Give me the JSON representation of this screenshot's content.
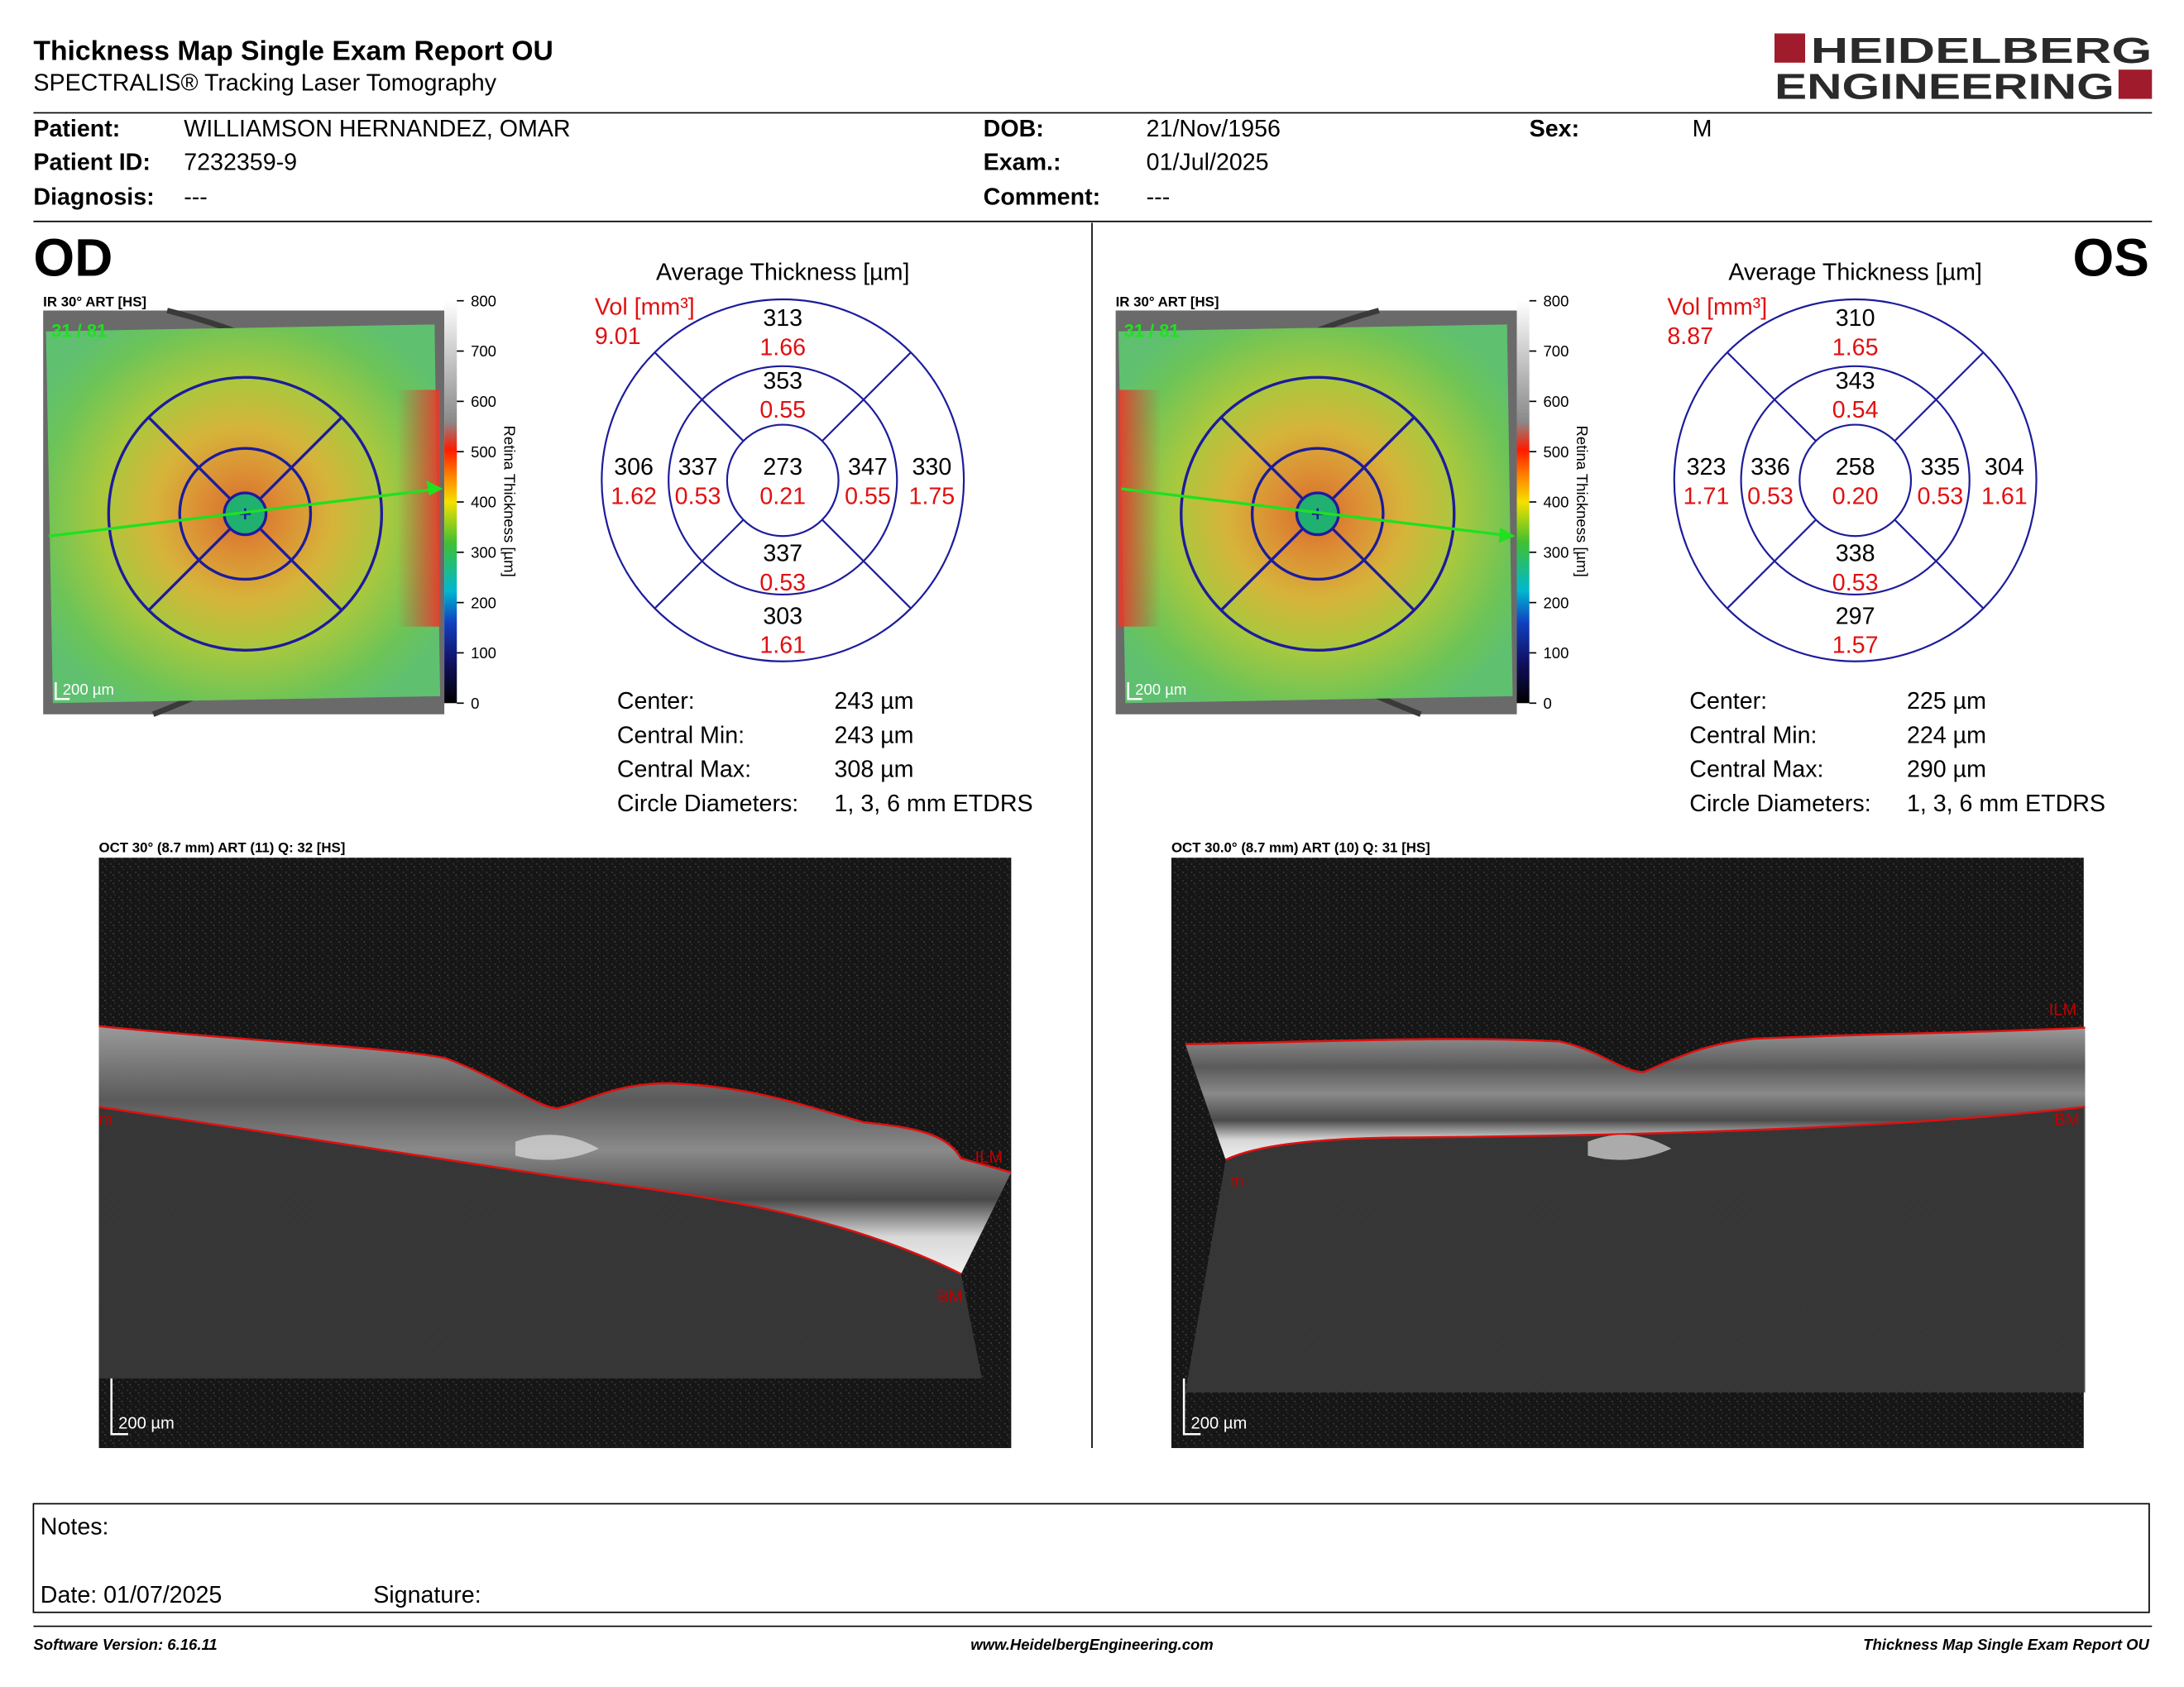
{
  "header": {
    "title": "Thickness Map Single Exam Report OU",
    "subtitle": "SPECTRALIS® Tracking Laser Tomography",
    "logo": [
      "HEIDELBERG",
      "ENGINEERING"
    ]
  },
  "patient": {
    "fields": [
      {
        "label": "Patient:",
        "value": "WILLIAMSON HERNANDEZ, OMAR"
      },
      {
        "label": "Patient ID:",
        "value": "7232359-9"
      },
      {
        "label": "Diagnosis:",
        "value": "---"
      },
      {
        "label": "DOB:",
        "value": "21/Nov/1956"
      },
      {
        "label": "Exam.:",
        "value": "01/Jul/2025"
      },
      {
        "label": "Comment:",
        "value": "---"
      },
      {
        "label": "Sex:",
        "value": "M"
      }
    ]
  },
  "eyes": [
    {
      "label": "OD",
      "fundus": {
        "label": "IR 30° ART [HS]",
        "frame": "31 / 81",
        "scale": "200 µm"
      },
      "colorbar": {
        "title": "Retina Thickness [µm]",
        "ticks": [
          "800",
          "700",
          "600",
          "500",
          "400",
          "300",
          "200",
          "100",
          "0"
        ]
      },
      "thickness": {
        "title": "Average Thickness [µm]",
        "vol_label": "Vol [mm³]",
        "total_vol": "9.01",
        "sectors": [
          {
            "thickness": "273",
            "volume": "0.21"
          },
          {
            "thickness": "353",
            "volume": "0.55"
          },
          {
            "thickness": "347",
            "volume": "0.55"
          },
          {
            "thickness": "337",
            "volume": "0.53"
          },
          {
            "thickness": "337",
            "volume": "0.53"
          },
          {
            "thickness": "313",
            "volume": "1.66"
          },
          {
            "thickness": "330",
            "volume": "1.75"
          },
          {
            "thickness": "303",
            "volume": "1.61"
          },
          {
            "thickness": "306",
            "volume": "1.62"
          }
        ]
      },
      "stats": [
        {
          "label": "Center:",
          "value": "243 µm"
        },
        {
          "label": "Central Min:",
          "value": "243 µm"
        },
        {
          "label": "Central Max:",
          "value": "308 µm"
        },
        {
          "label": "Circle Diameters:",
          "value": "1, 3, 6 mm ETDRS"
        }
      ],
      "oct": {
        "label": "OCT 30° (8.7 mm) ART (11) Q: 32 [HS]",
        "ilm": "ILM",
        "bm": "BM",
        "m": "m",
        "scale": "200 µm"
      }
    },
    {
      "label": "OS",
      "fundus": {
        "label": "IR 30° ART [HS]",
        "frame": "31 / 81",
        "scale": "200 µm"
      },
      "colorbar": {
        "title": "Retina Thickness [µm]",
        "ticks": [
          "800",
          "700",
          "600",
          "500",
          "400",
          "300",
          "200",
          "100",
          "0"
        ]
      },
      "thickness": {
        "title": "Average Thickness [µm]",
        "vol_label": "Vol [mm³]",
        "total_vol": "8.87",
        "sectors": [
          {
            "thickness": "258",
            "volume": "0.20"
          },
          {
            "thickness": "343",
            "volume": "0.54"
          },
          {
            "thickness": "335",
            "volume": "0.53"
          },
          {
            "thickness": "338",
            "volume": "0.53"
          },
          {
            "thickness": "336",
            "volume": "0.53"
          },
          {
            "thickness": "310",
            "volume": "1.65"
          },
          {
            "thickness": "304",
            "volume": "1.61"
          },
          {
            "thickness": "297",
            "volume": "1.57"
          },
          {
            "thickness": "323",
            "volume": "1.71"
          }
        ]
      },
      "stats": [
        {
          "label": "Center:",
          "value": "225 µm"
        },
        {
          "label": "Central Min:",
          "value": "224 µm"
        },
        {
          "label": "Central Max:",
          "value": "290 µm"
        },
        {
          "label": "Circle Diameters:",
          "value": "1, 3, 6 mm ETDRS"
        }
      ],
      "oct": {
        "label": "OCT 30.0° (8.7 mm) ART (10) Q: 31 [HS]",
        "ilm": "ILM",
        "bm": "BM",
        "m": "m",
        "scale": "200 µm"
      }
    }
  ],
  "notes": {
    "label": "Notes:",
    "date": "Date: 01/07/2025",
    "signature": "Signature:"
  },
  "footer": {
    "left": "Software Version: 6.16.11",
    "center": "www.HeidelbergEngineering.com",
    "right": "Thickness Map Single Exam Report OU"
  }
}
